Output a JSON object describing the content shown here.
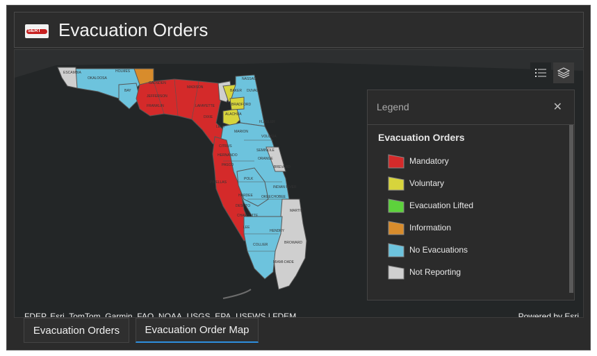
{
  "header": {
    "logo_text": "SERT",
    "title": "Evacuation Orders"
  },
  "map": {
    "attribution": "FDEP, Esri, TomTom, Garmin, FAO, NOAA, USGS, EPA, USFWS | FDEM",
    "powered_by": "Powered by Esri",
    "county_labels": [
      "ESCAMBIA",
      "OKALOOSA",
      "HOLMES",
      "BAY",
      "GADSDEN",
      "JEFFERSON",
      "FRANKLIN",
      "MADISON",
      "LAFAYETTE",
      "DIXIE",
      "LEVY",
      "BAKER",
      "DUVAL",
      "NASSAU",
      "BRADFORD",
      "ALACHUA",
      "FLAGLER",
      "MARION",
      "VOLUSIA",
      "CITRUS",
      "SEMINOLE",
      "ORANGE",
      "HERNANDO",
      "PASCO",
      "BREVARD",
      "PINELLAS",
      "POLK",
      "INDIAN RIVER",
      "HARDEE",
      "OKEECHOBEE",
      "DESOTO",
      "CHARLOTTE",
      "MARTIN",
      "LEE",
      "HENDRY",
      "COLLIER",
      "BROWARD",
      "MIAMI-DADE"
    ]
  },
  "legend": {
    "title": "Legend",
    "close_icon": "close-icon",
    "layer_title": "Evacuation Orders",
    "items": [
      {
        "label": "Mandatory",
        "color": "#d42a2a"
      },
      {
        "label": "Voluntary",
        "color": "#d7d43c"
      },
      {
        "label": "Evacuation Lifted",
        "color": "#5dd23c"
      },
      {
        "label": "Information",
        "color": "#d88c2c"
      },
      {
        "label": "No Evacuations",
        "color": "#6dc3dd"
      },
      {
        "label": "Not Reporting",
        "color": "#cfcfcf"
      }
    ]
  },
  "tools": {
    "list_icon": "legend-list-icon",
    "layers_icon": "layers-icon"
  },
  "tabs": [
    {
      "label": "Evacuation Orders",
      "active": false
    },
    {
      "label": "Evacuation Order Map",
      "active": true
    }
  ]
}
